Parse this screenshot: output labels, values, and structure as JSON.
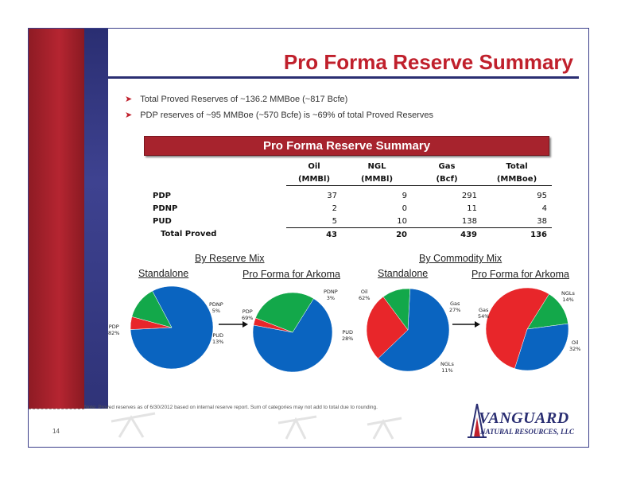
{
  "title": "Pro Forma Reserve Summary",
  "bullets": [
    "Total Proved Reserves of ~136.2 MMBoe (~817 Bcfe)",
    "PDP reserves of ~95 MMBoe (~570 Bcfe) is ~69% of total Proved Reserves"
  ],
  "table": {
    "banner": "Pro Forma Reserve Summary",
    "headers": [
      {
        "top": "Oil",
        "bottom": "(MMBl)"
      },
      {
        "top": "NGL",
        "bottom": "(MMBl)"
      },
      {
        "top": "Gas",
        "bottom": "(Bcf)"
      },
      {
        "top": "Total",
        "bottom": "(MMBoe)"
      }
    ],
    "rows": [
      {
        "label": "PDP",
        "values": [
          "37",
          "9",
          "291",
          "95"
        ]
      },
      {
        "label": "PDNP",
        "values": [
          "2",
          "0",
          "11",
          "4"
        ]
      },
      {
        "label": "PUD",
        "values": [
          "5",
          "10",
          "138",
          "38"
        ]
      }
    ],
    "total": {
      "label": "Total Proved",
      "values": [
        "43",
        "20",
        "439",
        "136"
      ]
    }
  },
  "sections": {
    "reserve_mix": "By Reserve Mix",
    "commodity_mix": "By Commodity Mix",
    "standalone_1": "Standalone",
    "proforma_1": "Pro Forma for Arkoma",
    "standalone_2": "Standalone",
    "proforma_2": "Pro Forma for Arkoma"
  },
  "pie_labels": {
    "p1_pdp": "PDP",
    "p1_pdp_v": "82%",
    "p1_pdnp": "PDNP",
    "p1_pdnp_v": "5%",
    "p1_pud": "PUD",
    "p1_pud_v": "13%",
    "p2_pdnp": "PDNP",
    "p2_pdnp_v": "3%",
    "p2_pdp": "PDP",
    "p2_pdp_v": "69%",
    "p2_pud": "PUD",
    "p2_pud_v": "28%",
    "p3_oil": "Oil",
    "p3_oil_v": "62%",
    "p3_gas": "Gas",
    "p3_gas_v": "27%",
    "p3_ngl": "NGLs",
    "p3_ngl_v": "11%",
    "p4_ngl": "NGLs",
    "p4_ngl_v": "14%",
    "p4_gas": "Gas",
    "p4_gas_v": "54%",
    "p4_oil": "Oil",
    "p4_oil_v": "32%"
  },
  "chart_data": [
    {
      "type": "pie",
      "categories": [
        "PDP",
        "PDNP",
        "PUD"
      ],
      "values": [
        82,
        5,
        13
      ],
      "colors": [
        "#0a64c0",
        "#e8262a",
        "#13a84a"
      ]
    },
    {
      "type": "pie",
      "categories": [
        "PDP",
        "PDNP",
        "PUD"
      ],
      "values": [
        69,
        3,
        28
      ],
      "colors": [
        "#0a64c0",
        "#e8262a",
        "#13a84a"
      ]
    },
    {
      "type": "pie",
      "categories": [
        "Oil",
        "Gas",
        "NGLs"
      ],
      "values": [
        62,
        27,
        11
      ],
      "colors": [
        "#0a64c0",
        "#e8262a",
        "#13a84a"
      ]
    },
    {
      "type": "pie",
      "categories": [
        "NGLs",
        "Oil",
        "Gas"
      ],
      "values": [
        14,
        32,
        54
      ],
      "colors": [
        "#13a84a",
        "#0a64c0",
        "#e8262a"
      ]
    }
  ],
  "note": "Note: Proved reserves as of 6/30/2012 based on internal reserve report. Sum of categories may not add to total due to rounding.",
  "page_number": "14",
  "logo": {
    "name": "VANGUARD",
    "sub": "NATURAL RESOURCES, LLC"
  },
  "colors": {
    "brand_red": "#c0202c",
    "navy": "#2a2e72"
  }
}
